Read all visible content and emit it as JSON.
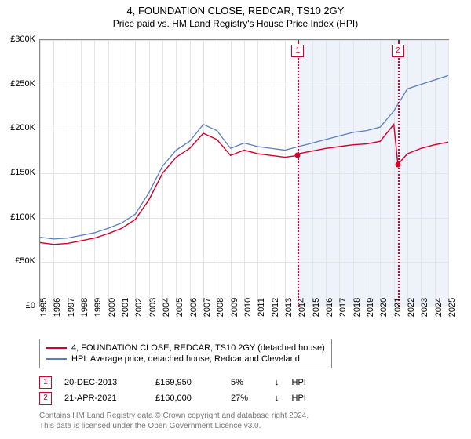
{
  "title": "4, FOUNDATION CLOSE, REDCAR, TS10 2GY",
  "subtitle": "Price paid vs. HM Land Registry's House Price Index (HPI)",
  "chart": {
    "type": "line",
    "background_color": "#ffffff",
    "grid_color": "#e4e4e4",
    "shade_color": "#eef2fa",
    "axis_color": "#888888",
    "ylim": [
      0,
      300000
    ],
    "ytick_step": 50000,
    "ytick_labels": [
      "£0",
      "£50K",
      "£100K",
      "£150K",
      "£200K",
      "£250K",
      "£300K"
    ],
    "x_years": [
      1995,
      1996,
      1997,
      1998,
      1999,
      2000,
      2001,
      2002,
      2003,
      2004,
      2005,
      2006,
      2007,
      2008,
      2009,
      2010,
      2011,
      2012,
      2013,
      2014,
      2015,
      2016,
      2017,
      2018,
      2019,
      2020,
      2021,
      2022,
      2023,
      2024,
      2025
    ],
    "shade_from_year": 2013.95,
    "series": [
      {
        "name": "property",
        "color": "#d4002a",
        "width": 1.4,
        "data": [
          [
            1995,
            72000
          ],
          [
            1996,
            70000
          ],
          [
            1997,
            71000
          ],
          [
            1998,
            74000
          ],
          [
            1999,
            77000
          ],
          [
            2000,
            82000
          ],
          [
            2001,
            88000
          ],
          [
            2002,
            98000
          ],
          [
            2003,
            120000
          ],
          [
            2004,
            150000
          ],
          [
            2005,
            168000
          ],
          [
            2006,
            178000
          ],
          [
            2007,
            195000
          ],
          [
            2008,
            188000
          ],
          [
            2009,
            170000
          ],
          [
            2010,
            176000
          ],
          [
            2011,
            172000
          ],
          [
            2012,
            170000
          ],
          [
            2013,
            168000
          ],
          [
            2013.95,
            170000
          ],
          [
            2014,
            172000
          ],
          [
            2015,
            175000
          ],
          [
            2016,
            178000
          ],
          [
            2017,
            180000
          ],
          [
            2018,
            182000
          ],
          [
            2019,
            183000
          ],
          [
            2020,
            186000
          ],
          [
            2021,
            205000
          ],
          [
            2021.3,
            160000
          ],
          [
            2022,
            172000
          ],
          [
            2023,
            178000
          ],
          [
            2024,
            182000
          ],
          [
            2025,
            185000
          ]
        ]
      },
      {
        "name": "hpi",
        "color": "#5b7fbf",
        "width": 1.3,
        "data": [
          [
            1995,
            78000
          ],
          [
            1996,
            76000
          ],
          [
            1997,
            77000
          ],
          [
            1998,
            80000
          ],
          [
            1999,
            83000
          ],
          [
            2000,
            88000
          ],
          [
            2001,
            94000
          ],
          [
            2002,
            104000
          ],
          [
            2003,
            128000
          ],
          [
            2004,
            158000
          ],
          [
            2005,
            176000
          ],
          [
            2006,
            186000
          ],
          [
            2007,
            205000
          ],
          [
            2008,
            198000
          ],
          [
            2009,
            178000
          ],
          [
            2010,
            184000
          ],
          [
            2011,
            180000
          ],
          [
            2012,
            178000
          ],
          [
            2013,
            176000
          ],
          [
            2014,
            180000
          ],
          [
            2015,
            184000
          ],
          [
            2016,
            188000
          ],
          [
            2017,
            192000
          ],
          [
            2018,
            196000
          ],
          [
            2019,
            198000
          ],
          [
            2020,
            202000
          ],
          [
            2021,
            220000
          ],
          [
            2022,
            245000
          ],
          [
            2023,
            250000
          ],
          [
            2024,
            255000
          ],
          [
            2025,
            260000
          ]
        ]
      }
    ],
    "markers": [
      {
        "id": "1",
        "year": 2013.95,
        "price": 169950,
        "color": "#d4002a"
      },
      {
        "id": "2",
        "year": 2021.3,
        "price": 160000,
        "color": "#d4002a"
      }
    ]
  },
  "legend": {
    "items": [
      {
        "color": "#d4002a",
        "label": "4, FOUNDATION CLOSE, REDCAR, TS10 2GY (detached house)"
      },
      {
        "color": "#5b7fbf",
        "label": "HPI: Average price, detached house, Redcar and Cleveland"
      }
    ]
  },
  "transactions": [
    {
      "id": "1",
      "date": "20-DEC-2013",
      "price": "£169,950",
      "pct": "5%",
      "arrow": "↓",
      "ref": "HPI",
      "color": "#d4002a"
    },
    {
      "id": "2",
      "date": "21-APR-2021",
      "price": "£160,000",
      "pct": "27%",
      "arrow": "↓",
      "ref": "HPI",
      "color": "#d4002a"
    }
  ],
  "footer": {
    "line1": "Contains HM Land Registry data © Crown copyright and database right 2024.",
    "line2": "This data is licensed under the Open Government Licence v3.0."
  }
}
